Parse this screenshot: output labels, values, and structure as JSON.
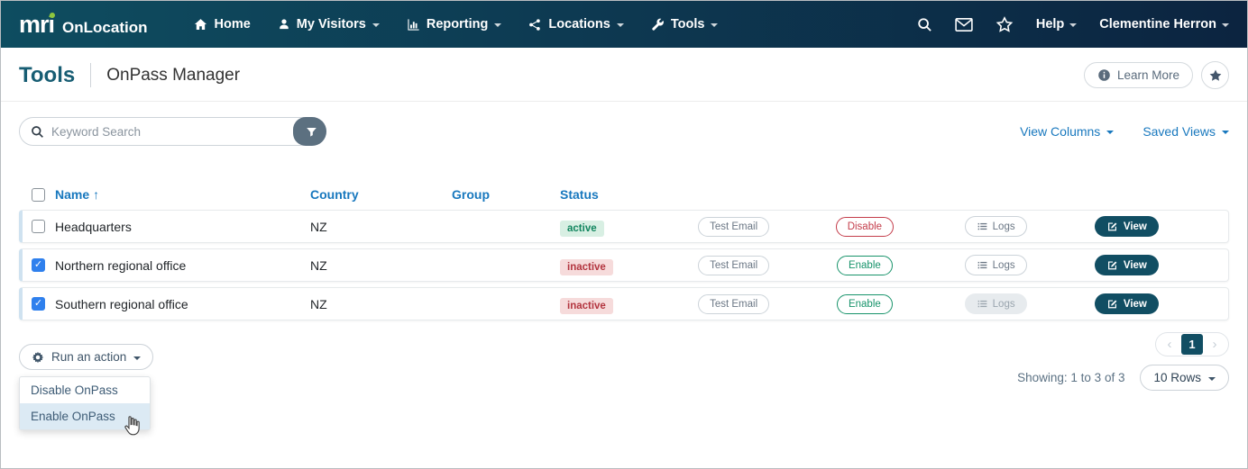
{
  "navbar": {
    "brand": {
      "logo": "mri",
      "product": "OnLocation"
    },
    "items": [
      {
        "label": "Home",
        "icon": "home-icon",
        "caret": false
      },
      {
        "label": "My Visitors",
        "icon": "person-icon",
        "caret": true
      },
      {
        "label": "Reporting",
        "icon": "bar-chart-icon",
        "caret": true
      },
      {
        "label": "Locations",
        "icon": "network-icon",
        "caret": true
      },
      {
        "label": "Tools",
        "icon": "wrench-icon",
        "caret": true
      }
    ],
    "right": {
      "help_label": "Help",
      "user_name": "Clementine Herron"
    }
  },
  "page_header": {
    "section": "Tools",
    "title": "OnPass Manager",
    "learn_more_label": "Learn More"
  },
  "toolbar": {
    "search_placeholder": "Keyword Search",
    "view_columns_label": "View Columns",
    "saved_views_label": "Saved Views"
  },
  "table": {
    "columns": [
      "Name",
      "Country",
      "Group",
      "Status"
    ],
    "sorted_column": "Name",
    "sort_direction": "ascending",
    "row_buttons": {
      "test_email": "Test Email",
      "logs": "Logs",
      "view": "View"
    },
    "rows": [
      {
        "name": "Headquarters",
        "country": "NZ",
        "group": "",
        "status": "active",
        "checked": false,
        "toggle_label": "Disable",
        "toggle_variant": "danger",
        "logs_disabled": false
      },
      {
        "name": "Northern regional office",
        "country": "NZ",
        "group": "",
        "status": "inactive",
        "checked": true,
        "toggle_label": "Enable",
        "toggle_variant": "success",
        "logs_disabled": false
      },
      {
        "name": "Southern regional office",
        "country": "NZ",
        "group": "",
        "status": "inactive",
        "checked": true,
        "toggle_label": "Enable",
        "toggle_variant": "success",
        "logs_disabled": true
      }
    ]
  },
  "actions": {
    "run_action_label": "Run an action",
    "menu_items": [
      "Disable OnPass",
      "Enable OnPass"
    ],
    "hovered_item": "Enable OnPass"
  },
  "pagination": {
    "prev": "‹",
    "next": "›",
    "current_page": "1",
    "showing_text": "Showing: 1 to 3 of 3",
    "rows_selector_label": "10 Rows"
  },
  "colors": {
    "navbar_gradient_left": "#0e4d60",
    "navbar_gradient_right": "#0c2440",
    "brand_green": "#8dc63f",
    "link_blue": "#1878be",
    "title_teal": "#175d73",
    "button_teal": "#114e63",
    "checkbox_blue": "#2f80ed",
    "active_bg": "#d8efe3",
    "active_text": "#12865f",
    "inactive_bg": "#f6dbdb",
    "inactive_text": "#b3353f",
    "danger": "#c43d4b",
    "success": "#17936a",
    "filter_slate": "#5c7080"
  }
}
